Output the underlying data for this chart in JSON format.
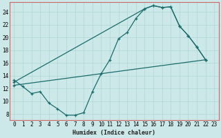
{
  "xlabel": "Humidex (Indice chaleur)",
  "bg_color": "#cce8e8",
  "grid_color": "#aed4d4",
  "line_color": "#1a6b6b",
  "spine_color": "#cc6666",
  "xlim": [
    -0.5,
    23.5
  ],
  "ylim": [
    7,
    25.5
  ],
  "xticks": [
    0,
    1,
    2,
    3,
    4,
    5,
    6,
    7,
    8,
    9,
    10,
    11,
    12,
    13,
    14,
    15,
    16,
    17,
    18,
    19,
    20,
    21,
    22,
    23
  ],
  "yticks": [
    8,
    10,
    12,
    14,
    16,
    18,
    20,
    22,
    24
  ],
  "curve1_x": [
    0,
    1,
    2,
    3,
    4,
    5,
    6,
    7,
    8,
    9,
    10,
    11,
    12,
    13,
    14,
    15,
    16,
    17,
    18,
    19,
    20,
    21,
    22
  ],
  "curve1_y": [
    13.3,
    12.3,
    11.2,
    11.5,
    9.7,
    8.8,
    7.8,
    7.8,
    8.2,
    11.5,
    14.3,
    16.5,
    19.8,
    20.8,
    23.0,
    24.5,
    25.0,
    24.7,
    24.8,
    21.8,
    20.3,
    18.5,
    16.5
  ],
  "curve2_x": [
    0,
    15,
    16,
    17,
    18,
    19,
    20,
    21,
    22
  ],
  "curve2_y": [
    13.0,
    24.5,
    25.0,
    24.7,
    24.8,
    21.8,
    20.3,
    18.5,
    16.5
  ],
  "curve3_x": [
    0,
    22
  ],
  "curve3_y": [
    12.5,
    16.5
  ]
}
